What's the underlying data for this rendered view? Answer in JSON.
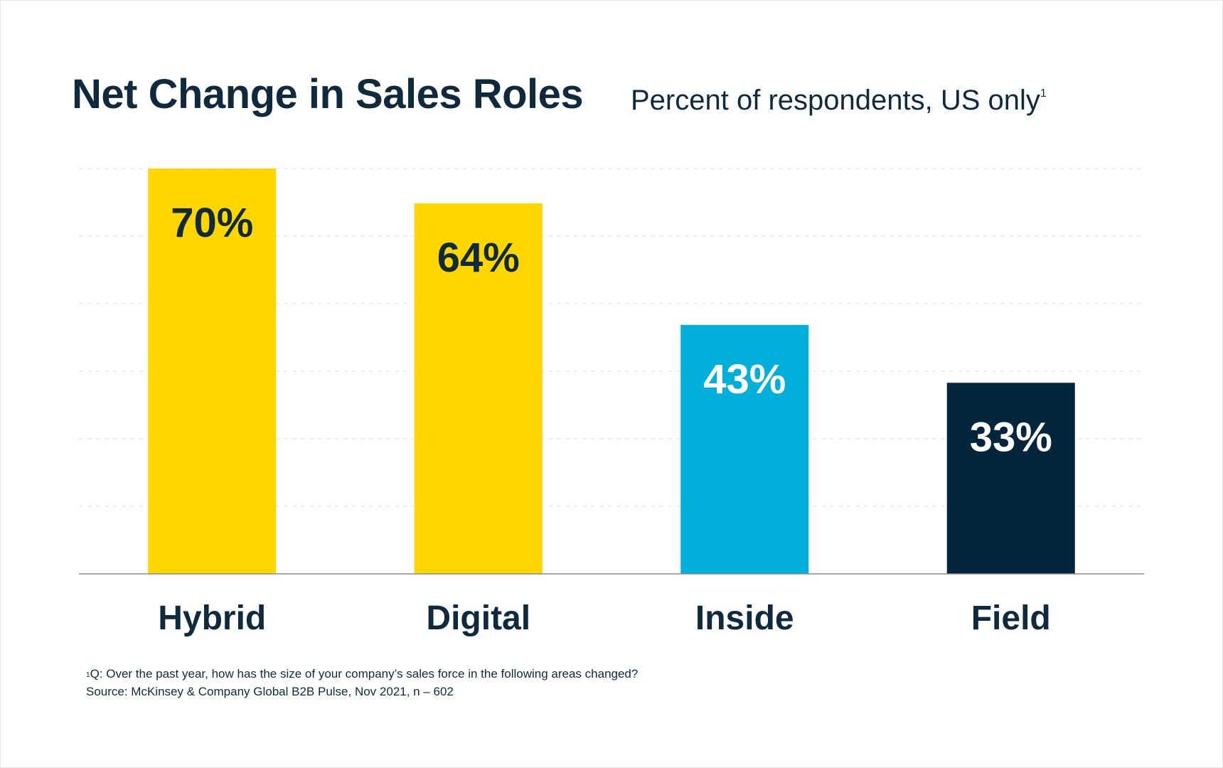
{
  "chart_data": {
    "type": "bar",
    "title": "Net Change in Sales Roles",
    "subtitle": "Percent of respondents, US only",
    "subtitle_footnote_marker": "1",
    "categories": [
      "Hybrid",
      "Digital",
      "Inside",
      "Field"
    ],
    "values": [
      70,
      64,
      43,
      33
    ],
    "value_labels": [
      "70%",
      "64%",
      "43%",
      "33%"
    ],
    "bar_colors": [
      "#FFD600",
      "#FFD600",
      "#00B0DB",
      "#03263D"
    ],
    "label_colors": [
      "#0F2A3D",
      "#0F2A3D",
      "#FFFFFF",
      "#FFFFFF"
    ],
    "ylim": [
      0,
      70
    ],
    "grid": true,
    "gridline_count": 6,
    "xlabel": "",
    "ylabel": ""
  },
  "footnote": {
    "marker": "1",
    "question": "Q: Over the past year, how has the size of your company’s sales force in the following areas changed?",
    "source": "Source: McKinsey & Company Global B2B Pulse, Nov 2021, n – 602"
  }
}
